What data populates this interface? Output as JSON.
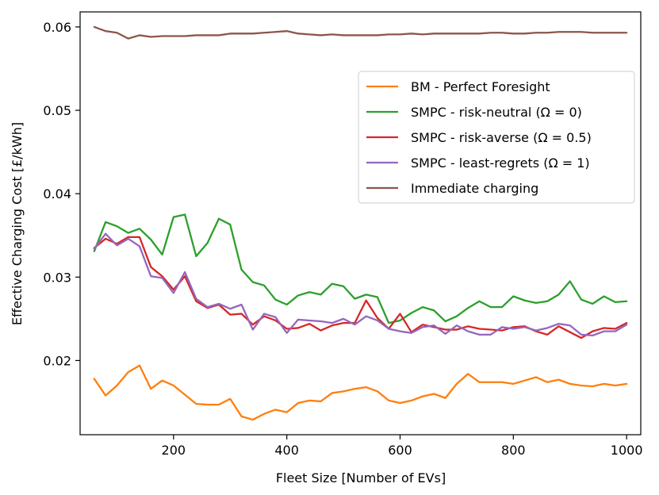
{
  "chart_data": {
    "type": "line",
    "title": "",
    "xlabel": "Fleet Size [Number of EVs]",
    "ylabel": "Effective Charging Cost [£/kWh]",
    "xlim": [
      35,
      1025
    ],
    "ylim": [
      0.0111,
      0.0618
    ],
    "xticks": [
      200,
      400,
      600,
      800,
      1000
    ],
    "yticks": [
      0.02,
      0.03,
      0.04,
      0.05,
      0.06
    ],
    "xtick_labels": [
      "200",
      "400",
      "600",
      "800",
      "1000"
    ],
    "ytick_labels": [
      "0.02",
      "0.03",
      "0.04",
      "0.05",
      "0.06"
    ],
    "grid": false,
    "legend_position": "upper-right",
    "x": [
      60,
      80,
      100,
      120,
      140,
      160,
      180,
      200,
      220,
      240,
      260,
      280,
      300,
      320,
      340,
      360,
      380,
      400,
      420,
      440,
      460,
      480,
      500,
      520,
      540,
      560,
      580,
      600,
      620,
      640,
      660,
      680,
      700,
      720,
      740,
      760,
      780,
      800,
      820,
      840,
      860,
      880,
      900,
      920,
      940,
      960,
      980,
      1000
    ],
    "series": [
      {
        "name": "BM - Perfect Foresight",
        "color": "#ff7f0e",
        "values": [
          0.0178,
          0.0158,
          0.017,
          0.0186,
          0.0194,
          0.0166,
          0.0176,
          0.017,
          0.0159,
          0.0148,
          0.0147,
          0.0147,
          0.0154,
          0.0133,
          0.0129,
          0.0136,
          0.0141,
          0.0138,
          0.0149,
          0.0152,
          0.0151,
          0.0161,
          0.0163,
          0.0166,
          0.0168,
          0.0163,
          0.0152,
          0.0149,
          0.0152,
          0.0157,
          0.016,
          0.0155,
          0.0172,
          0.0184,
          0.0174,
          0.0174,
          0.0174,
          0.0172,
          0.0176,
          0.018,
          0.0174,
          0.0177,
          0.0172,
          0.017,
          0.0169,
          0.0172,
          0.017,
          0.0172
        ]
      },
      {
        "name": "SMPC - risk-neutral (Ω = 0)",
        "color": "#2ca02c",
        "values": [
          0.0331,
          0.0366,
          0.0361,
          0.0353,
          0.0358,
          0.0345,
          0.0327,
          0.0372,
          0.0375,
          0.0325,
          0.0341,
          0.037,
          0.0363,
          0.0309,
          0.0294,
          0.029,
          0.0273,
          0.0267,
          0.0278,
          0.0282,
          0.0279,
          0.0292,
          0.0289,
          0.0274,
          0.0279,
          0.0276,
          0.0245,
          0.0248,
          0.0257,
          0.0264,
          0.026,
          0.0247,
          0.0253,
          0.0263,
          0.0271,
          0.0264,
          0.0264,
          0.0277,
          0.0272,
          0.0269,
          0.0271,
          0.0279,
          0.0295,
          0.0273,
          0.0268,
          0.0277,
          0.027,
          0.0271
        ]
      },
      {
        "name": "SMPC - risk-averse (Ω = 0.5)",
        "color": "#d62728",
        "values": [
          0.0335,
          0.0346,
          0.034,
          0.0348,
          0.0348,
          0.0312,
          0.0301,
          0.0285,
          0.0301,
          0.0271,
          0.0263,
          0.0267,
          0.0255,
          0.0256,
          0.0243,
          0.0253,
          0.0248,
          0.0238,
          0.0239,
          0.0244,
          0.0236,
          0.0242,
          0.0245,
          0.0245,
          0.0272,
          0.0251,
          0.0238,
          0.0256,
          0.0234,
          0.0243,
          0.024,
          0.0237,
          0.0237,
          0.0241,
          0.0238,
          0.0237,
          0.0236,
          0.024,
          0.0241,
          0.0235,
          0.0231,
          0.0241,
          0.0234,
          0.0227,
          0.0235,
          0.0239,
          0.0238,
          0.0245
        ]
      },
      {
        "name": "SMPC - least-regrets (Ω = 1)",
        "color": "#9467bd",
        "values": [
          0.0334,
          0.0352,
          0.0338,
          0.0346,
          0.0337,
          0.0301,
          0.0299,
          0.0281,
          0.0306,
          0.0274,
          0.0264,
          0.0268,
          0.0262,
          0.0267,
          0.0237,
          0.0256,
          0.0252,
          0.0233,
          0.0249,
          0.0248,
          0.0247,
          0.0245,
          0.025,
          0.0243,
          0.0253,
          0.0248,
          0.0238,
          0.0235,
          0.0233,
          0.024,
          0.0242,
          0.0232,
          0.0242,
          0.0235,
          0.0231,
          0.0231,
          0.024,
          0.0238,
          0.024,
          0.0236,
          0.0239,
          0.0244,
          0.0242,
          0.0231,
          0.023,
          0.0235,
          0.0235,
          0.0243
        ]
      },
      {
        "name": "Immediate charging",
        "color": "#8c564b",
        "values": [
          0.06,
          0.0595,
          0.0593,
          0.0586,
          0.059,
          0.0588,
          0.0589,
          0.0589,
          0.0589,
          0.059,
          0.059,
          0.059,
          0.0592,
          0.0592,
          0.0592,
          0.0593,
          0.0594,
          0.0595,
          0.0592,
          0.0591,
          0.059,
          0.0591,
          0.059,
          0.059,
          0.059,
          0.059,
          0.0591,
          0.0591,
          0.0592,
          0.0591,
          0.0592,
          0.0592,
          0.0592,
          0.0592,
          0.0592,
          0.0593,
          0.0593,
          0.0592,
          0.0592,
          0.0593,
          0.0593,
          0.0594,
          0.0594,
          0.0594,
          0.0593,
          0.0593,
          0.0593,
          0.0593
        ]
      }
    ]
  }
}
